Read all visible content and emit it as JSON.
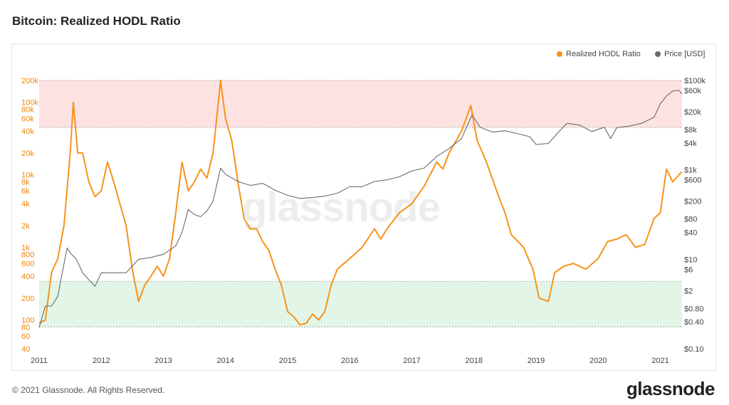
{
  "header": {
    "title": "Bitcoin: Realized HODL Ratio"
  },
  "footer": {
    "copyright": "© 2021 Glassnode. All Rights Reserved.",
    "logo": "glassnode"
  },
  "watermark": "glassnode",
  "colors": {
    "hodl": "#f7931a",
    "price": "#6b6b6b",
    "top_band": "#fde2e2",
    "bottom_band": "#e2f5e6",
    "axis_left": "#e8870e"
  },
  "chart_data": {
    "type": "line",
    "title": "Bitcoin: Realized HODL Ratio",
    "legend": {
      "placement": "top-right",
      "entries": [
        "Realized HODL Ratio",
        "Price [USD]"
      ]
    },
    "x_ticks": [
      "2011",
      "2012",
      "2013",
      "2014",
      "2015",
      "2016",
      "2017",
      "2018",
      "2019",
      "2020",
      "2021"
    ],
    "y_left": {
      "scale": "log",
      "range": [
        40,
        200000
      ],
      "tick_labels": [
        "200k",
        "100k",
        "80k",
        "60k",
        "40k",
        "20k",
        "10k",
        "8k",
        "6k",
        "4k",
        "2k",
        "1k",
        "800",
        "600",
        "400",
        "200",
        "100",
        "80",
        "60",
        "40"
      ]
    },
    "y_right": {
      "scale": "log",
      "range": [
        0.1,
        100000
      ],
      "tick_labels": [
        "$100k",
        "$60k",
        "$20k",
        "$8k",
        "$4k",
        "$1k",
        "$600",
        "$200",
        "$80",
        "$40",
        "$10",
        "$6",
        "$2",
        "$0.80",
        "$0.40",
        "$0.10"
      ]
    },
    "bands": [
      {
        "name": "top",
        "axis": "left",
        "from": 45000,
        "to": 200000
      },
      {
        "name": "bottom",
        "axis": "left",
        "from": 80,
        "to": 340
      }
    ],
    "series": [
      {
        "name": "Realized HODL Ratio",
        "axis": "left",
        "x": [
          2011.0,
          2011.1,
          2011.2,
          2011.3,
          2011.4,
          2011.5,
          2011.55,
          2011.62,
          2011.7,
          2011.8,
          2011.9,
          2012.0,
          2012.1,
          2012.2,
          2012.3,
          2012.4,
          2012.5,
          2012.6,
          2012.7,
          2012.8,
          2012.9,
          2013.0,
          2013.1,
          2013.2,
          2013.3,
          2013.4,
          2013.5,
          2013.6,
          2013.7,
          2013.8,
          2013.92,
          2014.0,
          2014.1,
          2014.2,
          2014.3,
          2014.4,
          2014.5,
          2014.6,
          2014.7,
          2014.8,
          2014.9,
          2015.0,
          2015.1,
          2015.2,
          2015.3,
          2015.4,
          2015.5,
          2015.6,
          2015.7,
          2015.8,
          2016.0,
          2016.2,
          2016.4,
          2016.5,
          2016.6,
          2016.8,
          2017.0,
          2017.2,
          2017.4,
          2017.5,
          2017.6,
          2017.8,
          2017.95,
          2018.05,
          2018.2,
          2018.4,
          2018.5,
          2018.6,
          2018.8,
          2018.95,
          2019.05,
          2019.2,
          2019.3,
          2019.45,
          2019.6,
          2019.8,
          2020.0,
          2020.15,
          2020.3,
          2020.45,
          2020.6,
          2020.75,
          2020.9,
          2021.0,
          2021.1,
          2021.2,
          2021.3,
          2021.35
        ],
        "values": [
          90,
          100,
          450,
          700,
          2000,
          20000,
          100000,
          20000,
          20000,
          8000,
          5000,
          6000,
          15000,
          8000,
          4000,
          2000,
          500,
          180,
          300,
          400,
          550,
          400,
          700,
          3000,
          15000,
          6000,
          8000,
          12000,
          9000,
          20000,
          200000,
          60000,
          30000,
          8000,
          2500,
          1800,
          1800,
          1200,
          900,
          500,
          300,
          130,
          110,
          85,
          90,
          120,
          100,
          130,
          300,
          500,
          700,
          1000,
          1800,
          1300,
          1800,
          3000,
          4000,
          7000,
          15000,
          12000,
          20000,
          40000,
          90000,
          30000,
          15000,
          5000,
          3000,
          1500,
          1000,
          500,
          200,
          180,
          450,
          550,
          600,
          500,
          700,
          1200,
          1300,
          1500,
          1000,
          1100,
          2500,
          3000,
          12000,
          8000,
          10000,
          11000
        ]
      },
      {
        "name": "Price [USD]",
        "axis": "right",
        "x": [
          2011.0,
          2011.1,
          2011.2,
          2011.3,
          2011.4,
          2011.45,
          2011.5,
          2011.6,
          2011.7,
          2011.8,
          2011.9,
          2012.0,
          2012.2,
          2012.4,
          2012.6,
          2012.8,
          2013.0,
          2013.2,
          2013.3,
          2013.4,
          2013.5,
          2013.6,
          2013.7,
          2013.8,
          2013.92,
          2014.0,
          2014.2,
          2014.4,
          2014.6,
          2014.8,
          2015.0,
          2015.2,
          2015.4,
          2015.6,
          2015.8,
          2016.0,
          2016.2,
          2016.4,
          2016.6,
          2016.8,
          2017.0,
          2017.2,
          2017.4,
          2017.6,
          2017.8,
          2017.97,
          2018.1,
          2018.3,
          2018.5,
          2018.7,
          2018.9,
          2019.0,
          2019.2,
          2019.4,
          2019.5,
          2019.7,
          2019.9,
          2020.1,
          2020.2,
          2020.3,
          2020.5,
          2020.7,
          2020.9,
          2021.0,
          2021.1,
          2021.2,
          2021.3,
          2021.35
        ],
        "values": [
          0.3,
          0.9,
          0.9,
          1.5,
          8,
          18,
          14,
          10,
          5,
          3.5,
          2.5,
          5,
          5,
          5,
          10,
          11,
          13,
          20,
          40,
          130,
          100,
          90,
          120,
          200,
          1100,
          800,
          550,
          450,
          500,
          350,
          270,
          230,
          240,
          260,
          300,
          420,
          420,
          550,
          600,
          700,
          950,
          1100,
          2000,
          3000,
          5000,
          17000,
          9000,
          7000,
          7500,
          6500,
          5500,
          3700,
          3900,
          8000,
          11000,
          10000,
          7200,
          9000,
          5000,
          8800,
          9500,
          11000,
          15000,
          30000,
          45000,
          58000,
          60000,
          50000
        ]
      }
    ]
  }
}
